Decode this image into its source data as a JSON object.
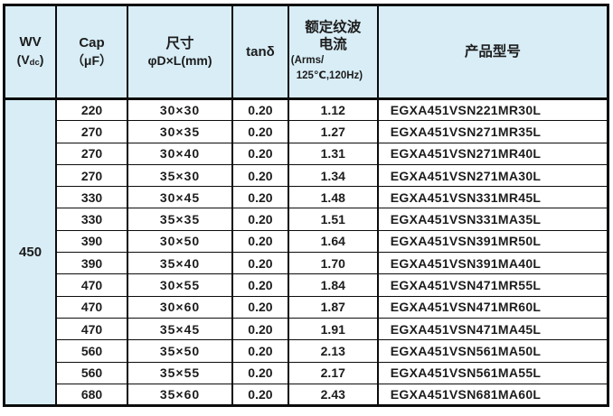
{
  "table": {
    "wv_value": "450",
    "headers": {
      "wv": {
        "line1": "WV",
        "pre": "(V",
        "sub": "dc",
        "post": ")"
      },
      "cap": {
        "line1": "Cap",
        "line2": "（μF）"
      },
      "size": {
        "line1": "尺寸",
        "line2": "φD×L(mm)"
      },
      "tan_delta": "tanδ",
      "ripple": {
        "line1": "额定纹波",
        "line2": "电流",
        "line3": "(Arms/",
        "line4": "125℃,120Hz)"
      },
      "part": "产品型号"
    },
    "rows": [
      {
        "cap": "220",
        "size": "30×30",
        "tan_delta": "0.20",
        "ripple": "1.12",
        "part": "EGXA451VSN221MR30L"
      },
      {
        "cap": "270",
        "size": "30×35",
        "tan_delta": "0.20",
        "ripple": "1.27",
        "part": "EGXA451VSN271MR35L"
      },
      {
        "cap": "270",
        "size": "30×40",
        "tan_delta": "0.20",
        "ripple": "1.31",
        "part": "EGXA451VSN271MR40L"
      },
      {
        "cap": "270",
        "size": "35×30",
        "tan_delta": "0.20",
        "ripple": "1.34",
        "part": "EGXA451VSN271MA30L"
      },
      {
        "cap": "330",
        "size": "30×45",
        "tan_delta": "0.20",
        "ripple": "1.48",
        "part": "EGXA451VSN331MR45L"
      },
      {
        "cap": "330",
        "size": "35×35",
        "tan_delta": "0.20",
        "ripple": "1.51",
        "part": "EGXA451VSN331MA35L"
      },
      {
        "cap": "390",
        "size": "30×50",
        "tan_delta": "0.20",
        "ripple": "1.64",
        "part": "EGXA451VSN391MR50L"
      },
      {
        "cap": "390",
        "size": "35×40",
        "tan_delta": "0.20",
        "ripple": "1.70",
        "part": "EGXA451VSN391MA40L"
      },
      {
        "cap": "470",
        "size": "30×55",
        "tan_delta": "0.20",
        "ripple": "1.84",
        "part": "EGXA451VSN471MR55L"
      },
      {
        "cap": "470",
        "size": "30×60",
        "tan_delta": "0.20",
        "ripple": "1.87",
        "part": "EGXA451VSN471MR60L"
      },
      {
        "cap": "470",
        "size": "35×45",
        "tan_delta": "0.20",
        "ripple": "1.91",
        "part": "EGXA451VSN471MA45L"
      },
      {
        "cap": "560",
        "size": "35×50",
        "tan_delta": "0.20",
        "ripple": "2.13",
        "part": "EGXA451VSN561MA50L"
      },
      {
        "cap": "560",
        "size": "35×55",
        "tan_delta": "0.20",
        "ripple": "2.17",
        "part": "EGXA451VSN561MA55L"
      },
      {
        "cap": "680",
        "size": "35×60",
        "tan_delta": "0.20",
        "ripple": "2.43",
        "part": "EGXA451VSN681MA60L"
      }
    ],
    "colors": {
      "header_bg": "#d8edf6",
      "border": "#0c0c0c",
      "text": "#1c1c1c"
    }
  }
}
